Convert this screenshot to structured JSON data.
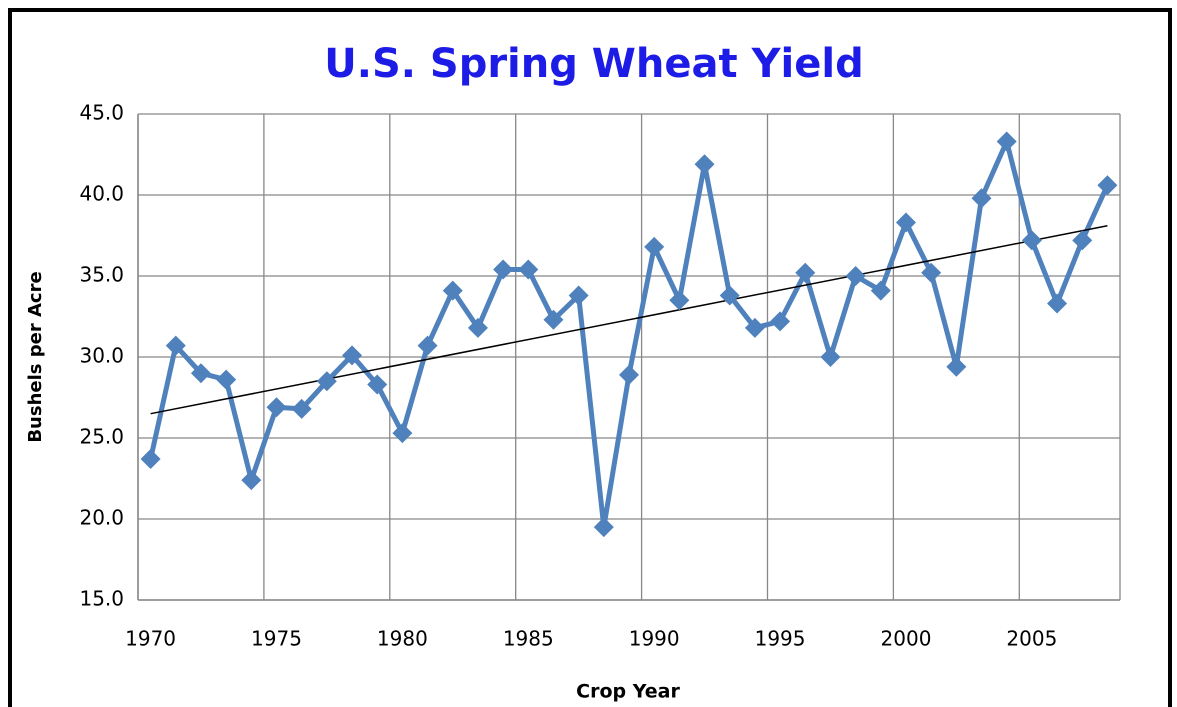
{
  "chart_data": {
    "type": "line",
    "title": "U.S. Spring Wheat Yield",
    "x_label": "Crop Year",
    "y_label": "Bushels per Acre",
    "categories": [
      "1970",
      null,
      null,
      null,
      null,
      "1975",
      null,
      null,
      null,
      null,
      "1980",
      null,
      null,
      null,
      null,
      "1985",
      null,
      null,
      null,
      null,
      "1990",
      null,
      null,
      null,
      null,
      "1995",
      null,
      null,
      null,
      null,
      "2000",
      null,
      null,
      null,
      null,
      "2005",
      null,
      null,
      null
    ],
    "series": [
      {
        "color": "#4f81bd",
        "values": [
          23.7,
          30.7,
          29.0,
          28.6,
          22.4,
          26.9,
          26.8,
          28.5,
          30.1,
          28.3,
          25.3,
          30.7,
          34.1,
          31.8,
          35.4,
          35.4,
          32.3,
          33.8,
          19.5,
          28.9,
          36.8,
          33.5,
          41.9,
          33.8,
          31.8,
          32.2,
          35.2,
          30.0,
          35.0,
          34.1,
          38.3,
          35.2,
          29.4,
          39.8,
          43.3,
          37.2,
          33.3,
          37.2,
          40.6
        ]
      }
    ],
    "trendline": {
      "start": 26.5,
      "end": 38.1,
      "color": "#000000"
    },
    "ylim": [
      15,
      45
    ],
    "yticks": [
      {
        "value": 15,
        "label": "15.0"
      },
      {
        "value": 20,
        "label": "20.0"
      },
      {
        "value": 25,
        "label": "25.0"
      },
      {
        "value": 30,
        "label": "30.0"
      },
      {
        "value": 35,
        "label": "35.0"
      },
      {
        "value": 40,
        "label": "40.0"
      },
      {
        "value": 45,
        "label": "45.0"
      }
    ],
    "grid": true,
    "marker": "diamond"
  }
}
